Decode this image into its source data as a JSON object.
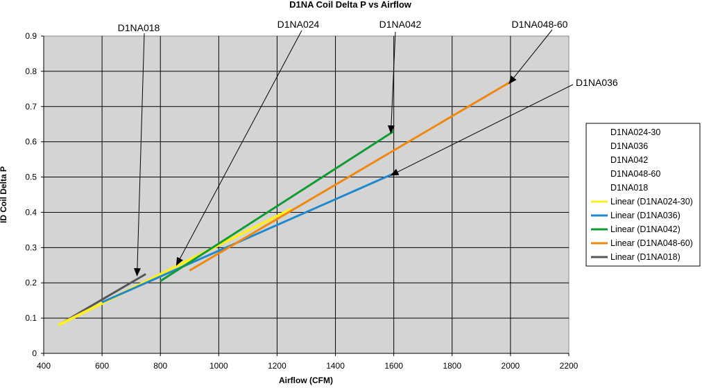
{
  "chart_data": {
    "type": "line",
    "title": "D1NA Coil Delta P vs Airflow",
    "xlabel": "Airflow (CFM)",
    "ylabel": "ID Coil Delta P",
    "xlim": [
      400,
      2200
    ],
    "ylim": [
      0,
      0.9
    ],
    "x_ticks": [
      "400",
      "600",
      "800",
      "1000",
      "1200",
      "1400",
      "1600",
      "1800",
      "2000",
      "2200"
    ],
    "y_ticks": [
      "0",
      "0.1",
      "0.2",
      "0.3",
      "0.4",
      "0.5",
      "0.6",
      "0.7",
      "0.8",
      "0.9"
    ],
    "grid": true,
    "plot_background": "#d4d4d4",
    "legend_position": "right",
    "series": [
      {
        "name": "Linear (D1NA024-30)",
        "color": "#ffee22",
        "x": [
          450,
          1250
        ],
        "y": [
          0.08,
          0.41
        ]
      },
      {
        "name": "Linear (D1NA036)",
        "color": "#2288cc",
        "x": [
          600,
          1600
        ],
        "y": [
          0.145,
          0.51
        ]
      },
      {
        "name": "Linear (D1NA042)",
        "color": "#119933",
        "x": [
          800,
          1600
        ],
        "y": [
          0.205,
          0.63
        ]
      },
      {
        "name": "Linear (D1NA048-60)",
        "color": "#ee8811",
        "x": [
          900,
          2000
        ],
        "y": [
          0.235,
          0.77
        ]
      },
      {
        "name": "Linear (D1NA018)",
        "color": "#555555",
        "x": [
          460,
          750
        ],
        "y": [
          0.085,
          0.225
        ]
      }
    ],
    "legend_entries": [
      {
        "label": "D1NA024-30",
        "kind": "marker"
      },
      {
        "label": "D1NA036",
        "kind": "marker"
      },
      {
        "label": "D1NA042",
        "kind": "marker"
      },
      {
        "label": "D1NA048-60",
        "kind": "marker"
      },
      {
        "label": "D1NA018",
        "kind": "marker"
      },
      {
        "label": "Linear (D1NA024-30)",
        "kind": "line",
        "color": "#ffee22"
      },
      {
        "label": "Linear (D1NA036)",
        "kind": "line",
        "color": "#2288cc"
      },
      {
        "label": "Linear (D1NA042)",
        "kind": "line",
        "color": "#119933"
      },
      {
        "label": "Linear (D1NA048-60)",
        "kind": "line",
        "color": "#ee8811"
      },
      {
        "label": "Linear (D1NA018)",
        "kind": "line",
        "color": "#555555"
      }
    ],
    "annotations": [
      {
        "text": "D1NA018",
        "point": [
          720,
          0.22
        ]
      },
      {
        "text": "D1NA024",
        "point": [
          855,
          0.25
        ]
      },
      {
        "text": "D1NA042",
        "point": [
          1590,
          0.625
        ]
      },
      {
        "text": "D1NA048-60",
        "point": [
          1995,
          0.765
        ]
      },
      {
        "text": "D1NA036",
        "point": [
          1590,
          0.505
        ]
      }
    ]
  }
}
